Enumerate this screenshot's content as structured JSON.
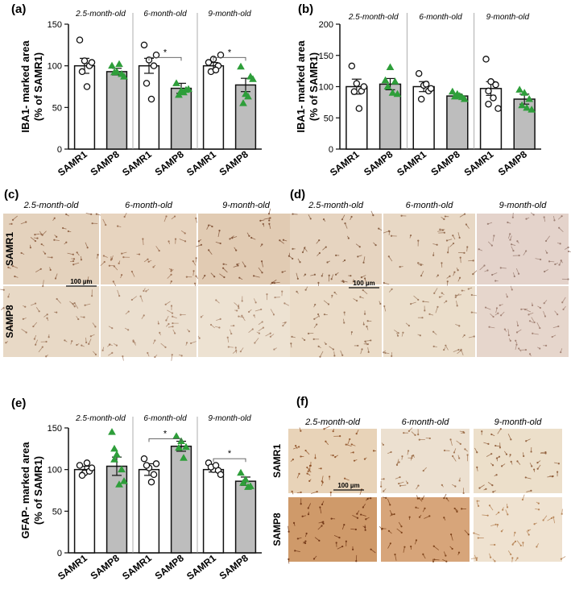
{
  "colors": {
    "samr1_fill": "#ffffff",
    "samp8_fill": "#bdbdbd",
    "samp8_marker": "#2e9e3a",
    "samr1_marker": "#ffffff",
    "stroke": "#111111"
  },
  "chart_data": [
    {
      "panel": "(a)",
      "type": "bar",
      "categories": [
        "SAMR1",
        "SAMP8",
        "SAMR1",
        "SAMP8",
        "SAMR1",
        "SAMP8"
      ],
      "groups": [
        "2.5-month-old",
        "6-month-old",
        "9-month-old"
      ],
      "ylabel": "IBA1- marked area (% of SAMR1)",
      "ylim": [
        0,
        150
      ],
      "yticks": [
        "0",
        "50",
        "100",
        "150"
      ],
      "values": [
        100,
        93,
        100,
        73,
        100,
        77
      ],
      "errors": [
        9,
        4,
        9,
        6,
        4,
        8
      ],
      "points": [
        [
          131,
          106,
          100,
          93,
          75,
          104
        ],
        [
          100,
          93,
          90,
          92,
          102,
          87
        ],
        [
          125,
          107,
          100,
          79,
          60,
          113
        ],
        [
          79,
          70,
          71,
          65,
          68,
          72
        ],
        [
          104,
          108,
          100,
          93,
          95,
          113
        ],
        [
          99,
          66,
          87,
          55,
          63,
          84
        ]
      ],
      "significance": [
        {
          "from": 2,
          "to": 3,
          "y": 110,
          "label": "*"
        },
        {
          "from": 4,
          "to": 5,
          "y": 110,
          "label": "*"
        }
      ]
    },
    {
      "panel": "(b)",
      "type": "bar",
      "categories": [
        "SAMR1",
        "SAMP8",
        "SAMR1",
        "SAMP8",
        "SAMR1",
        "SAMP8"
      ],
      "groups": [
        "2.5-month-old",
        "6-month-old",
        "9-month-old"
      ],
      "ylabel": "IBA1- marked area (% of SAMR1)",
      "ylim": [
        0,
        200
      ],
      "yticks": [
        "0",
        "50",
        "100",
        "150",
        "200"
      ],
      "values": [
        100,
        104,
        100,
        85,
        97,
        80
      ],
      "errors": [
        12,
        9,
        8,
        3,
        11,
        8
      ],
      "points": [
        [
          133,
          105,
          93,
          92,
          65,
          100
        ],
        [
          110,
          131,
          108,
          100,
          90,
          88
        ],
        [
          121,
          102,
          93,
          80,
          104,
          97
        ],
        [
          92,
          88,
          83,
          84,
          85,
          80
        ],
        [
          144,
          108,
          103,
          93,
          82,
          65,
          72
        ],
        [
          95,
          90,
          80,
          70,
          66,
          63
        ]
      ],
      "significance": []
    },
    {
      "panel": "(e)",
      "type": "bar",
      "categories": [
        "SAMR1",
        "SAMP8",
        "SAMR1",
        "SAMP8",
        "SAMR1",
        "SAMP8"
      ],
      "groups": [
        "2.5-month-old",
        "6-month-old",
        "9-month-old"
      ],
      "ylabel": "GFAP- marked area (% of SAMR1)",
      "ylim": [
        0,
        150
      ],
      "yticks": [
        "0",
        "50",
        "100",
        "150"
      ],
      "values": [
        100,
        104,
        100,
        128,
        100,
        86
      ],
      "errors": [
        4,
        11,
        7,
        6,
        3,
        5
      ],
      "points": [
        [
          105,
          96,
          98,
          93,
          108,
          102
        ],
        [
          145,
          118,
          100,
          112,
          82,
          86,
          125
        ],
        [
          113,
          102,
          94,
          105,
          85,
          107
        ],
        [
          140,
          134,
          127,
          126,
          114
        ],
        [
          108,
          100,
          99,
          103,
          105,
          94
        ],
        [
          96,
          88,
          80,
          84,
          79
        ]
      ],
      "significance": [
        {
          "from": 2,
          "to": 3,
          "y": 137,
          "label": "*"
        },
        {
          "from": 4,
          "to": 5,
          "y": 113,
          "label": "*"
        }
      ]
    }
  ],
  "micrographs": [
    {
      "panel": "(c)",
      "ages": [
        "2.5-month-old",
        "6-month-old",
        "9-month-old"
      ],
      "rows": [
        "SAMR1",
        "SAMP8"
      ],
      "scale": "100 µm"
    },
    {
      "panel": "(d)",
      "ages": [
        "2.5-month-old",
        "6-month-old",
        "9-month-old"
      ],
      "rows": [],
      "scale": "100 µm"
    },
    {
      "panel": "(f)",
      "ages": [
        "2.5-month-old",
        "6-month-old",
        "9-month-old"
      ],
      "rows": [
        "SAMR1",
        "SAMP8"
      ],
      "scale": "100 µm"
    }
  ]
}
